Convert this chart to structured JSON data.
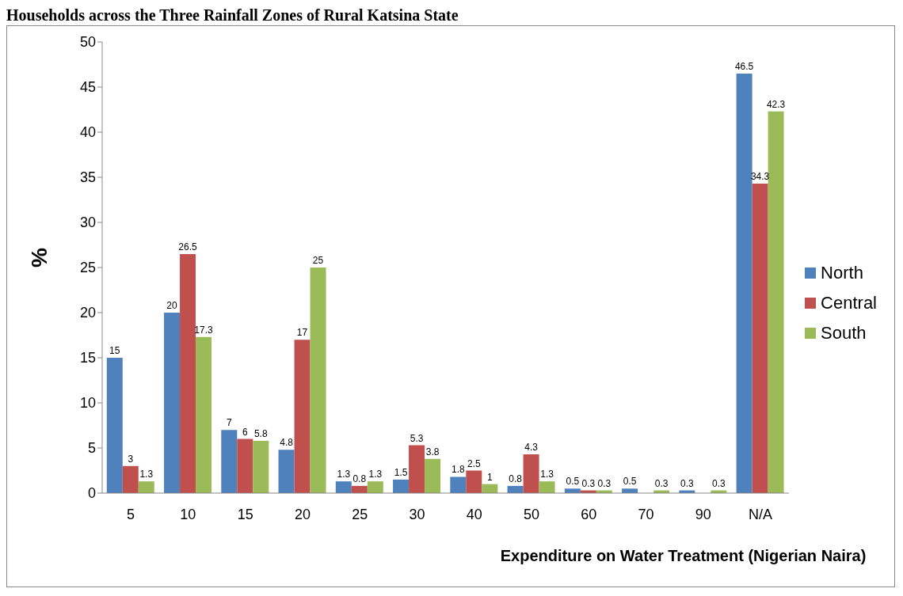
{
  "chart_data": {
    "type": "bar",
    "title": "Households across the Three Rainfall Zones of Rural Katsina State",
    "xlabel": "Expenditure on Water Treatment (Nigerian Naira)",
    "ylabel": "%",
    "categories": [
      "5",
      "10",
      "15",
      "20",
      "25",
      "30",
      "40",
      "50",
      "60",
      "70",
      "90",
      "N/A"
    ],
    "series": [
      {
        "name": "North",
        "color": "#4f81bd",
        "values": [
          15,
          20,
          7,
          4.8,
          1.3,
          1.5,
          1.8,
          0.8,
          0.5,
          0.5,
          0.3,
          46.5
        ]
      },
      {
        "name": "Central",
        "color": "#c0504d",
        "values": [
          3,
          26.5,
          6,
          17,
          0.8,
          5.3,
          2.5,
          4.3,
          0.3,
          null,
          null,
          34.3
        ]
      },
      {
        "name": "South",
        "color": "#9bbb59",
        "values": [
          1.3,
          17.3,
          5.8,
          25,
          1.3,
          3.8,
          1,
          1.3,
          0.3,
          0.3,
          0.3,
          42.3
        ]
      }
    ],
    "ylim": [
      0,
      50
    ],
    "yticks": [
      0,
      5,
      10,
      15,
      20,
      25,
      30,
      35,
      40,
      45,
      50
    ],
    "grid": false,
    "legend": "right",
    "data_labels": true
  }
}
